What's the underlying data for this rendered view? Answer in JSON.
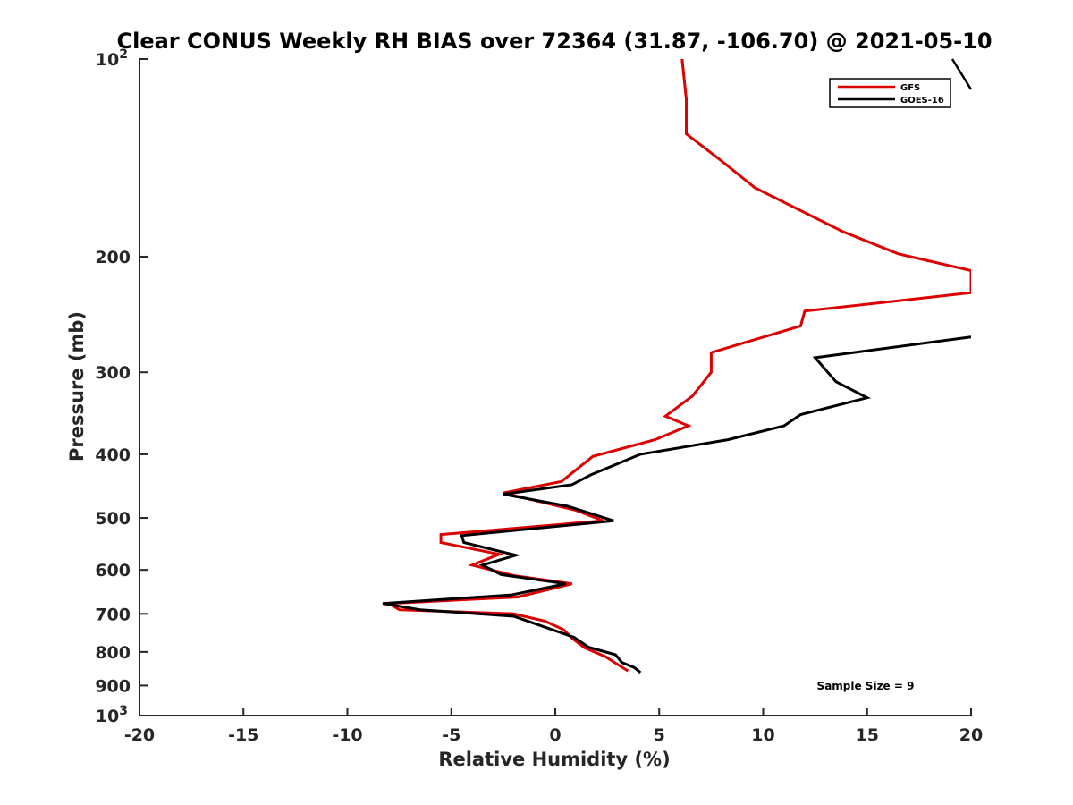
{
  "chart_data": {
    "type": "line",
    "title": "Clear CONUS Weekly RH BIAS over 72364 (31.87, -106.70) @ 2021-05-10",
    "xlabel": "Relative Humidity (%)",
    "ylabel": "Pressure (mb)",
    "xlim": [
      -20,
      20
    ],
    "ylim": [
      100,
      1000
    ],
    "y_scale": "log",
    "y_reversed": true,
    "x_ticks": [
      "-20",
      "-15",
      "-10",
      "-5",
      "0",
      "5",
      "10",
      "15",
      "20"
    ],
    "y_ticks": [
      {
        "value": 100,
        "label": "10",
        "exp": "2"
      },
      {
        "value": 200,
        "label": "200"
      },
      {
        "value": 300,
        "label": "300"
      },
      {
        "value": 400,
        "label": "400"
      },
      {
        "value": 500,
        "label": "500"
      },
      {
        "value": 600,
        "label": "600"
      },
      {
        "value": 700,
        "label": "700"
      },
      {
        "value": 800,
        "label": "800"
      },
      {
        "value": 900,
        "label": "900"
      },
      {
        "value": 1000,
        "label": "10",
        "exp": "3"
      }
    ],
    "grid": false,
    "legend_position": "top-right",
    "series": [
      {
        "name": "GFS",
        "color": "#dd0000",
        "points": [
          [
            3.5,
            855
          ],
          [
            2.9,
            832
          ],
          [
            2.4,
            813
          ],
          [
            1.4,
            788
          ],
          [
            0.8,
            762
          ],
          [
            0.4,
            740
          ],
          [
            -0.5,
            718
          ],
          [
            -2.0,
            700
          ],
          [
            -7.5,
            690
          ],
          [
            -8.0,
            675
          ],
          [
            -1.8,
            660
          ],
          [
            0.8,
            630
          ],
          [
            -2.0,
            612
          ],
          [
            -4.0,
            590
          ],
          [
            -2.7,
            568
          ],
          [
            -5.5,
            545
          ],
          [
            -5.5,
            530
          ],
          [
            2.3,
            505
          ],
          [
            1.0,
            487
          ],
          [
            -2.5,
            458
          ],
          [
            0.3,
            440
          ],
          [
            1.8,
            403
          ],
          [
            4.8,
            380
          ],
          [
            6.4,
            362
          ],
          [
            5.3,
            350
          ],
          [
            6.6,
            326
          ],
          [
            7.5,
            300
          ],
          [
            7.5,
            280
          ],
          [
            11.8,
            255
          ],
          [
            12.0,
            242
          ],
          [
            20,
            227
          ],
          [
            20,
            210
          ],
          [
            16.5,
            198
          ],
          [
            13.8,
            183
          ],
          [
            9.6,
            157
          ],
          [
            8.0,
            143
          ],
          [
            6.3,
            130
          ],
          [
            6.3,
            118
          ],
          [
            6.3,
            115
          ],
          [
            6.1,
            100
          ]
        ]
      },
      {
        "name": "GOES-16",
        "color": "#000000",
        "points": [
          [
            4.1,
            860
          ],
          [
            3.8,
            845
          ],
          [
            3.2,
            830
          ],
          [
            2.9,
            808
          ],
          [
            1.6,
            787
          ],
          [
            0.9,
            760
          ],
          [
            -0.4,
            735
          ],
          [
            -2.0,
            706
          ],
          [
            -6.5,
            690
          ],
          [
            -8.3,
            675
          ],
          [
            -2.1,
            655
          ],
          [
            0.5,
            630
          ],
          [
            -2.6,
            610
          ],
          [
            -3.5,
            590
          ],
          [
            -1.9,
            570
          ],
          [
            -4.4,
            545
          ],
          [
            -4.5,
            532
          ],
          [
            2.8,
            505
          ],
          [
            0.6,
            480
          ],
          [
            -2.5,
            460
          ],
          [
            0.8,
            445
          ],
          [
            1.7,
            430
          ],
          [
            4.1,
            400
          ],
          [
            8.3,
            380
          ],
          [
            11.0,
            362
          ],
          [
            11.8,
            348
          ],
          [
            15.0,
            328
          ],
          [
            13.5,
            310
          ],
          [
            12.5,
            285
          ],
          [
            20,
            265
          ]
        ]
      }
    ],
    "legend_entries": [
      "GFS",
      "GOES-16"
    ],
    "annotations": [
      "Sample Size = 9"
    ]
  }
}
